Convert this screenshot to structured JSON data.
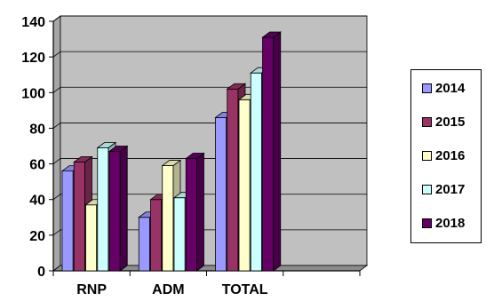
{
  "chart_data": {
    "type": "bar",
    "style": "3d-clustered-column",
    "categories": [
      "RNP",
      "ADM",
      "TOTAL"
    ],
    "series": [
      {
        "name": "2014",
        "values": [
          56,
          30,
          86
        ],
        "color": "#9999FF"
      },
      {
        "name": "2015",
        "values": [
          61,
          40,
          102
        ],
        "color": "#993366"
      },
      {
        "name": "2016",
        "values": [
          37,
          59,
          96
        ],
        "color": "#FFFFCC"
      },
      {
        "name": "2017",
        "values": [
          69,
          41,
          111
        ],
        "color": "#CCFFFF"
      },
      {
        "name": "2018",
        "values": [
          67,
          63,
          131
        ],
        "color": "#660066"
      }
    ],
    "ylim": [
      0,
      140
    ],
    "yticks": [
      0,
      20,
      40,
      60,
      80,
      100,
      120,
      140
    ],
    "plot_background": "#C0C0C0",
    "grid": true,
    "legend_position": "right"
  }
}
